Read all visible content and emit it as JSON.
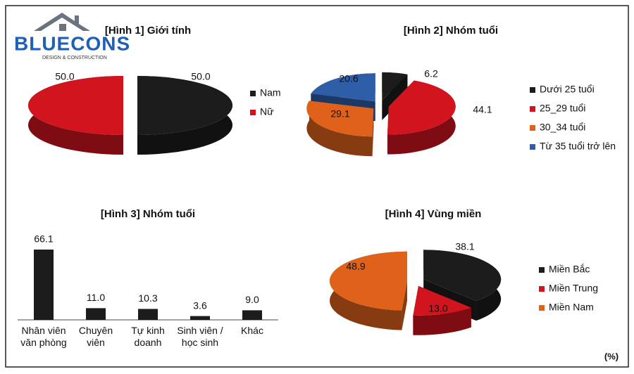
{
  "logo": {
    "name": "BLUECONS",
    "tagline": "DESIGN & CONSTRUCTION"
  },
  "unit_note": "(%)",
  "chart_data": [
    {
      "type": "pie",
      "title": "[Hình 1] Giới tính",
      "categories": [
        "Nam",
        "Nữ"
      ],
      "values": [
        50,
        50
      ],
      "value_labels": [
        "50.0",
        "50.0"
      ],
      "colors": [
        "#1c1c1c",
        "#d2141e"
      ]
    },
    {
      "type": "pie",
      "title": "[Hình 2] Nhóm tuổi",
      "categories": [
        "Dưới 25 tuổi",
        "25_29 tuổi",
        "30_34 tuổi",
        "Từ 35 tuổi trở lên"
      ],
      "values": [
        6.2,
        44.1,
        29.1,
        20.6
      ],
      "value_labels": [
        "6.2",
        "44.1",
        "29.1",
        "20.6"
      ],
      "colors": [
        "#1c1c1c",
        "#d2141e",
        "#e0621a",
        "#2e5ea8"
      ]
    },
    {
      "type": "bar",
      "title": "[Hình 3] Nhóm tuổi",
      "categories": [
        "Nhân viên\nvăn phòng",
        "Chuyên\nviên",
        "Tự kinh\ndoanh",
        "Sinh viên /\nhọc sinh",
        "Khác"
      ],
      "values": [
        66.1,
        11.0,
        10.3,
        3.6,
        9.0
      ],
      "value_labels": [
        "66.1",
        "11.0",
        "10.3",
        "3.6",
        "9.0"
      ],
      "color": "#1c1c1c"
    },
    {
      "type": "pie",
      "title": "[Hình 4] Vùng miền",
      "categories": [
        "Miền Bắc",
        "Miền Trung",
        "Miền Nam"
      ],
      "values": [
        38.1,
        13.0,
        48.9
      ],
      "value_labels": [
        "38.1",
        "13.0",
        "48.9"
      ],
      "colors": [
        "#1c1c1c",
        "#d2141e",
        "#e0621a"
      ]
    }
  ]
}
